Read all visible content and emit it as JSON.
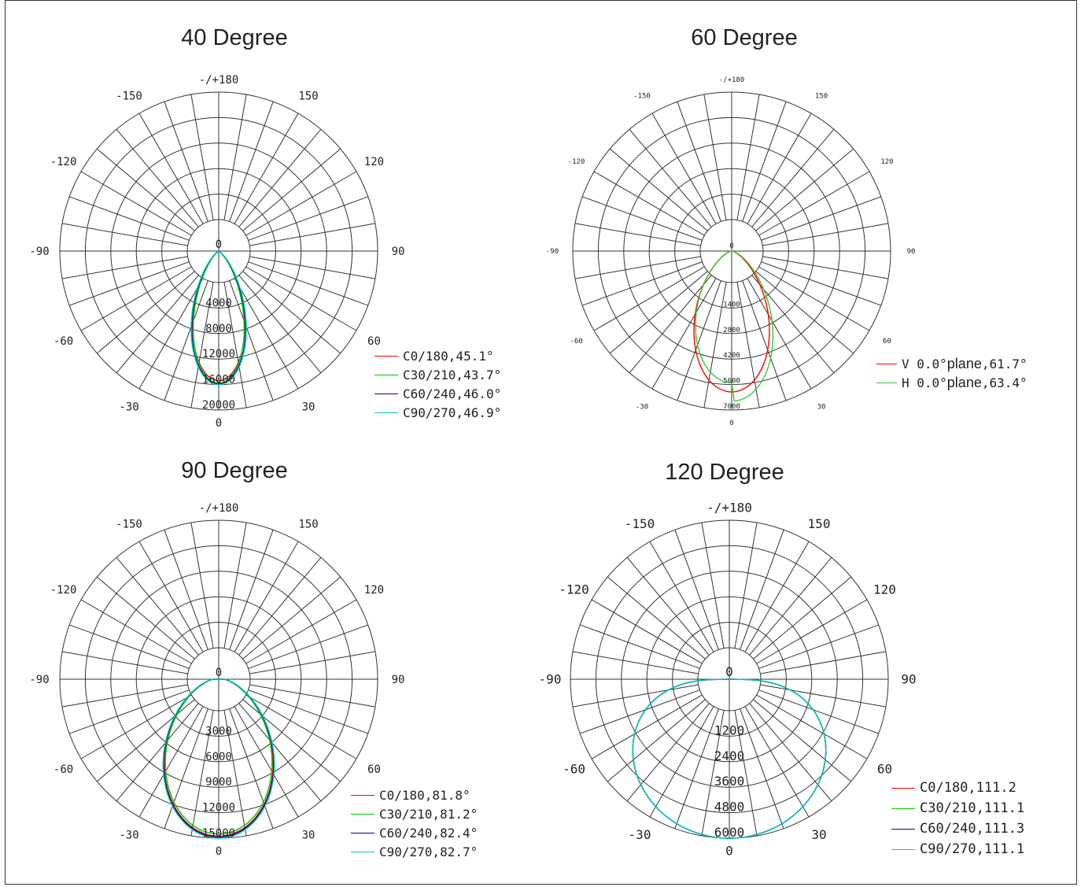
{
  "chart_data": [
    {
      "type": "polar",
      "title": "40 Degree",
      "angle_labels": {
        "top": "-/+180",
        "bottom": "0",
        "left": "-90",
        "right": "90",
        "upper_left": "-150",
        "upper_right": "150",
        "mid_left": "-120",
        "mid_right": "120",
        "lower_left": "-60",
        "lower_right": "60",
        "bottom_left": "-30",
        "bottom_right": "30"
      },
      "rmax": 20000,
      "rings": [
        0,
        4000,
        8000,
        12000,
        16000,
        20000
      ],
      "series": [
        {
          "name": "C0/180",
          "beam_angle": "45.1°",
          "label": "C0/180,45.1°",
          "color": "#ff0000",
          "peak": 16300,
          "beam_deg": 45.1
        },
        {
          "name": "C30/210",
          "beam_angle": "43.7°",
          "label": "C30/210,43.7°",
          "color": "#00cc00",
          "peak": 16600,
          "beam_deg": 43.7
        },
        {
          "name": "C60/240",
          "beam_angle": "46.0°",
          "label": "C60/240,46.0°",
          "color": "#000099",
          "peak": 16700,
          "beam_deg": 46.0
        },
        {
          "name": "C90/270",
          "beam_angle": "46.9°",
          "label": "C90/270,46.9°",
          "color": "#00cccc",
          "peak": 16800,
          "beam_deg": 46.9
        }
      ]
    },
    {
      "type": "polar",
      "title": "60 Degree",
      "angle_labels": {
        "top": "-/+180",
        "bottom": "0",
        "left": "-90",
        "right": "90",
        "upper_left": "-150",
        "upper_right": "150",
        "mid_left": "-120",
        "mid_right": "120",
        "lower_left": "-60",
        "lower_right": "60",
        "bottom_left": "-30",
        "bottom_right": "30"
      },
      "rmax": 7000,
      "rings": [
        0,
        1400,
        2800,
        4200,
        5600,
        7000
      ],
      "series": [
        {
          "name": "V 0.0° plane",
          "prefix": "V",
          "value": " 0.0°",
          "plane": " plane",
          "beam": ",61.7°",
          "color": "#ff0000",
          "peak": 6200,
          "beam_deg": 61.7
        },
        {
          "name": "H 0.0° plane",
          "prefix": "H",
          "value": " 0.0°",
          "plane": " plane",
          "beam": ",63.4°",
          "color": "#33cc33",
          "peak": 6300,
          "beam_deg": 63.4
        }
      ]
    },
    {
      "type": "polar",
      "title": "90 Degree",
      "angle_labels": {
        "top": "-/+180",
        "bottom": "0",
        "left": "-90",
        "right": "90",
        "upper_left": "-150",
        "upper_right": "150",
        "mid_left": "-120",
        "mid_right": "120",
        "lower_left": "-60",
        "lower_right": "60",
        "bottom_left": "-30",
        "bottom_right": "30"
      },
      "rmax": 15000,
      "rings": [
        0,
        3000,
        6000,
        9000,
        12000,
        15000
      ],
      "series": [
        {
          "name": "C0/180",
          "beam_angle": "81.8°",
          "label": "C0/180,81.8°",
          "color": "#ff0000",
          "peak": 14800,
          "beam_deg": 81.8
        },
        {
          "name": "C30/210",
          "beam_angle": "81.2°",
          "label": "C30/210,81.2°",
          "color": "#00cc00",
          "peak": 14600,
          "beam_deg": 81.2
        },
        {
          "name": "C60/240",
          "beam_angle": "82.4°",
          "label": "C60/240,82.4°",
          "color": "#000099",
          "peak": 14900,
          "beam_deg": 82.4
        },
        {
          "name": "C90/270",
          "beam_angle": "82.7°",
          "label": "C90/270,82.7°",
          "color": "#00cccc",
          "peak": 15000,
          "beam_deg": 82.7
        }
      ]
    },
    {
      "type": "polar",
      "title": "120 Degree",
      "angle_labels": {
        "top": "-/+180",
        "bottom": "0",
        "left": "-90",
        "right": "90",
        "upper_left": "-150",
        "upper_right": "150",
        "mid_left": "-120",
        "mid_right": "120",
        "lower_left": "-60",
        "lower_right": "60",
        "bottom_left": "-30",
        "bottom_right": "30"
      },
      "rmax": 6000,
      "rings": [
        0,
        1200,
        2400,
        3600,
        4800,
        6000
      ],
      "series": [
        {
          "name": "C0/180",
          "beam_angle": "111.2",
          "label": "C0/180,111.2",
          "color": "#ff0000",
          "peak": 6000,
          "beam_deg": 111.2
        },
        {
          "name": "C30/210",
          "beam_angle": "111.1",
          "label": "C30/210,111.1",
          "color": "#00cc00",
          "peak": 6000,
          "beam_deg": 111.1
        },
        {
          "name": "C60/240",
          "beam_angle": "111.3",
          "label": "C60/240,111.3",
          "color": "#0000cc",
          "peak": 6000,
          "beam_deg": 111.3
        },
        {
          "name": "C90/270",
          "beam_angle": "111.1",
          "label": "C90/270,111.1",
          "color": "#00cccc",
          "peak": 6000,
          "beam_deg": 111.1
        }
      ]
    }
  ]
}
